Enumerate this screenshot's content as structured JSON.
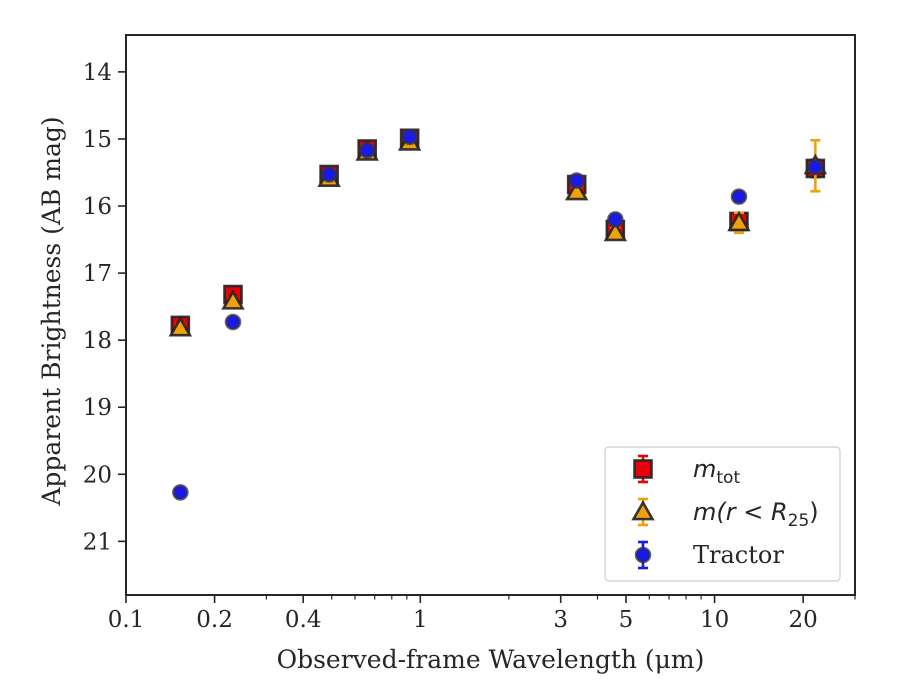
{
  "chart_data": {
    "type": "scatter",
    "xlabel": "Observed-frame Wavelength (μm)",
    "ylabel": "Apparent Brightness (AB mag)",
    "xscale": "log",
    "xlim": [
      0.1,
      30
    ],
    "ylim": [
      21.8,
      13.45
    ],
    "y_inverted": true,
    "xticks": [
      {
        "v": 0.1,
        "label": "0.1"
      },
      {
        "v": 0.2,
        "label": "0.2"
      },
      {
        "v": 0.4,
        "label": "0.4"
      },
      {
        "v": 1,
        "label": "1"
      },
      {
        "v": 3,
        "label": "3"
      },
      {
        "v": 5,
        "label": "5"
      },
      {
        "v": 10,
        "label": "10"
      },
      {
        "v": 20,
        "label": "20"
      }
    ],
    "yticks": [
      {
        "v": 14,
        "label": "14"
      },
      {
        "v": 15,
        "label": "15"
      },
      {
        "v": 16,
        "label": "16"
      },
      {
        "v": 17,
        "label": "17"
      },
      {
        "v": 18,
        "label": "18"
      },
      {
        "v": 19,
        "label": "19"
      },
      {
        "v": 20,
        "label": "20"
      },
      {
        "v": 21,
        "label": "21"
      }
    ],
    "legend_position": "lower-right",
    "series": [
      {
        "name": "m_tot",
        "legend_label": "m",
        "legend_sub": "tot",
        "marker": "square",
        "color": "#e8000b",
        "err_color": "#e8000b",
        "points": [
          {
            "x": 0.153,
            "y": 17.78,
            "err": 0.05
          },
          {
            "x": 0.231,
            "y": 17.32,
            "err": 0.05
          },
          {
            "x": 0.49,
            "y": 15.53,
            "err": 0.03
          },
          {
            "x": 0.66,
            "y": 15.15,
            "err": 0.03
          },
          {
            "x": 0.92,
            "y": 14.99,
            "err": 0.03
          },
          {
            "x": 3.4,
            "y": 15.68,
            "err": 0.05
          },
          {
            "x": 4.6,
            "y": 16.35,
            "err": 0.1
          },
          {
            "x": 12.1,
            "y": 16.23,
            "err": 0.07
          },
          {
            "x": 22.0,
            "y": 15.44,
            "err": 0.13
          }
        ]
      },
      {
        "name": "m(r < R25)",
        "legend_label": "m(r < R",
        "legend_sub": "25",
        "legend_tail": ")",
        "marker": "triangle",
        "color": "#f0a00a",
        "err_color": "#f0a00a",
        "points": [
          {
            "x": 0.153,
            "y": 17.82,
            "err": 0.05
          },
          {
            "x": 0.231,
            "y": 17.42,
            "err": 0.05
          },
          {
            "x": 0.49,
            "y": 15.59,
            "err": 0.03
          },
          {
            "x": 0.66,
            "y": 15.2,
            "err": 0.03
          },
          {
            "x": 0.92,
            "y": 15.05,
            "err": 0.03
          },
          {
            "x": 3.4,
            "y": 15.79,
            "err": 0.05
          },
          {
            "x": 4.6,
            "y": 16.4,
            "err": 0.07
          },
          {
            "x": 12.1,
            "y": 16.25,
            "err": 0.15
          },
          {
            "x": 22.0,
            "y": 15.4,
            "err": 0.38
          }
        ]
      },
      {
        "name": "Tractor",
        "legend_label": "Tractor",
        "marker": "circle",
        "color": "#1a1ae6",
        "err_color": "#1a1ae6",
        "points": [
          {
            "x": 0.153,
            "y": 20.27,
            "err": 0.05
          },
          {
            "x": 0.231,
            "y": 17.73,
            "err": 0.05
          },
          {
            "x": 0.49,
            "y": 15.53,
            "err": 0.03
          },
          {
            "x": 0.66,
            "y": 15.17,
            "err": 0.03
          },
          {
            "x": 0.92,
            "y": 14.97,
            "err": 0.05
          },
          {
            "x": 3.4,
            "y": 15.62,
            "err": 0.05
          },
          {
            "x": 4.6,
            "y": 16.2,
            "err": 0.05
          },
          {
            "x": 12.1,
            "y": 15.86,
            "err": 0.05
          },
          {
            "x": 22.0,
            "y": 15.42,
            "err": 0.05
          }
        ]
      }
    ]
  }
}
